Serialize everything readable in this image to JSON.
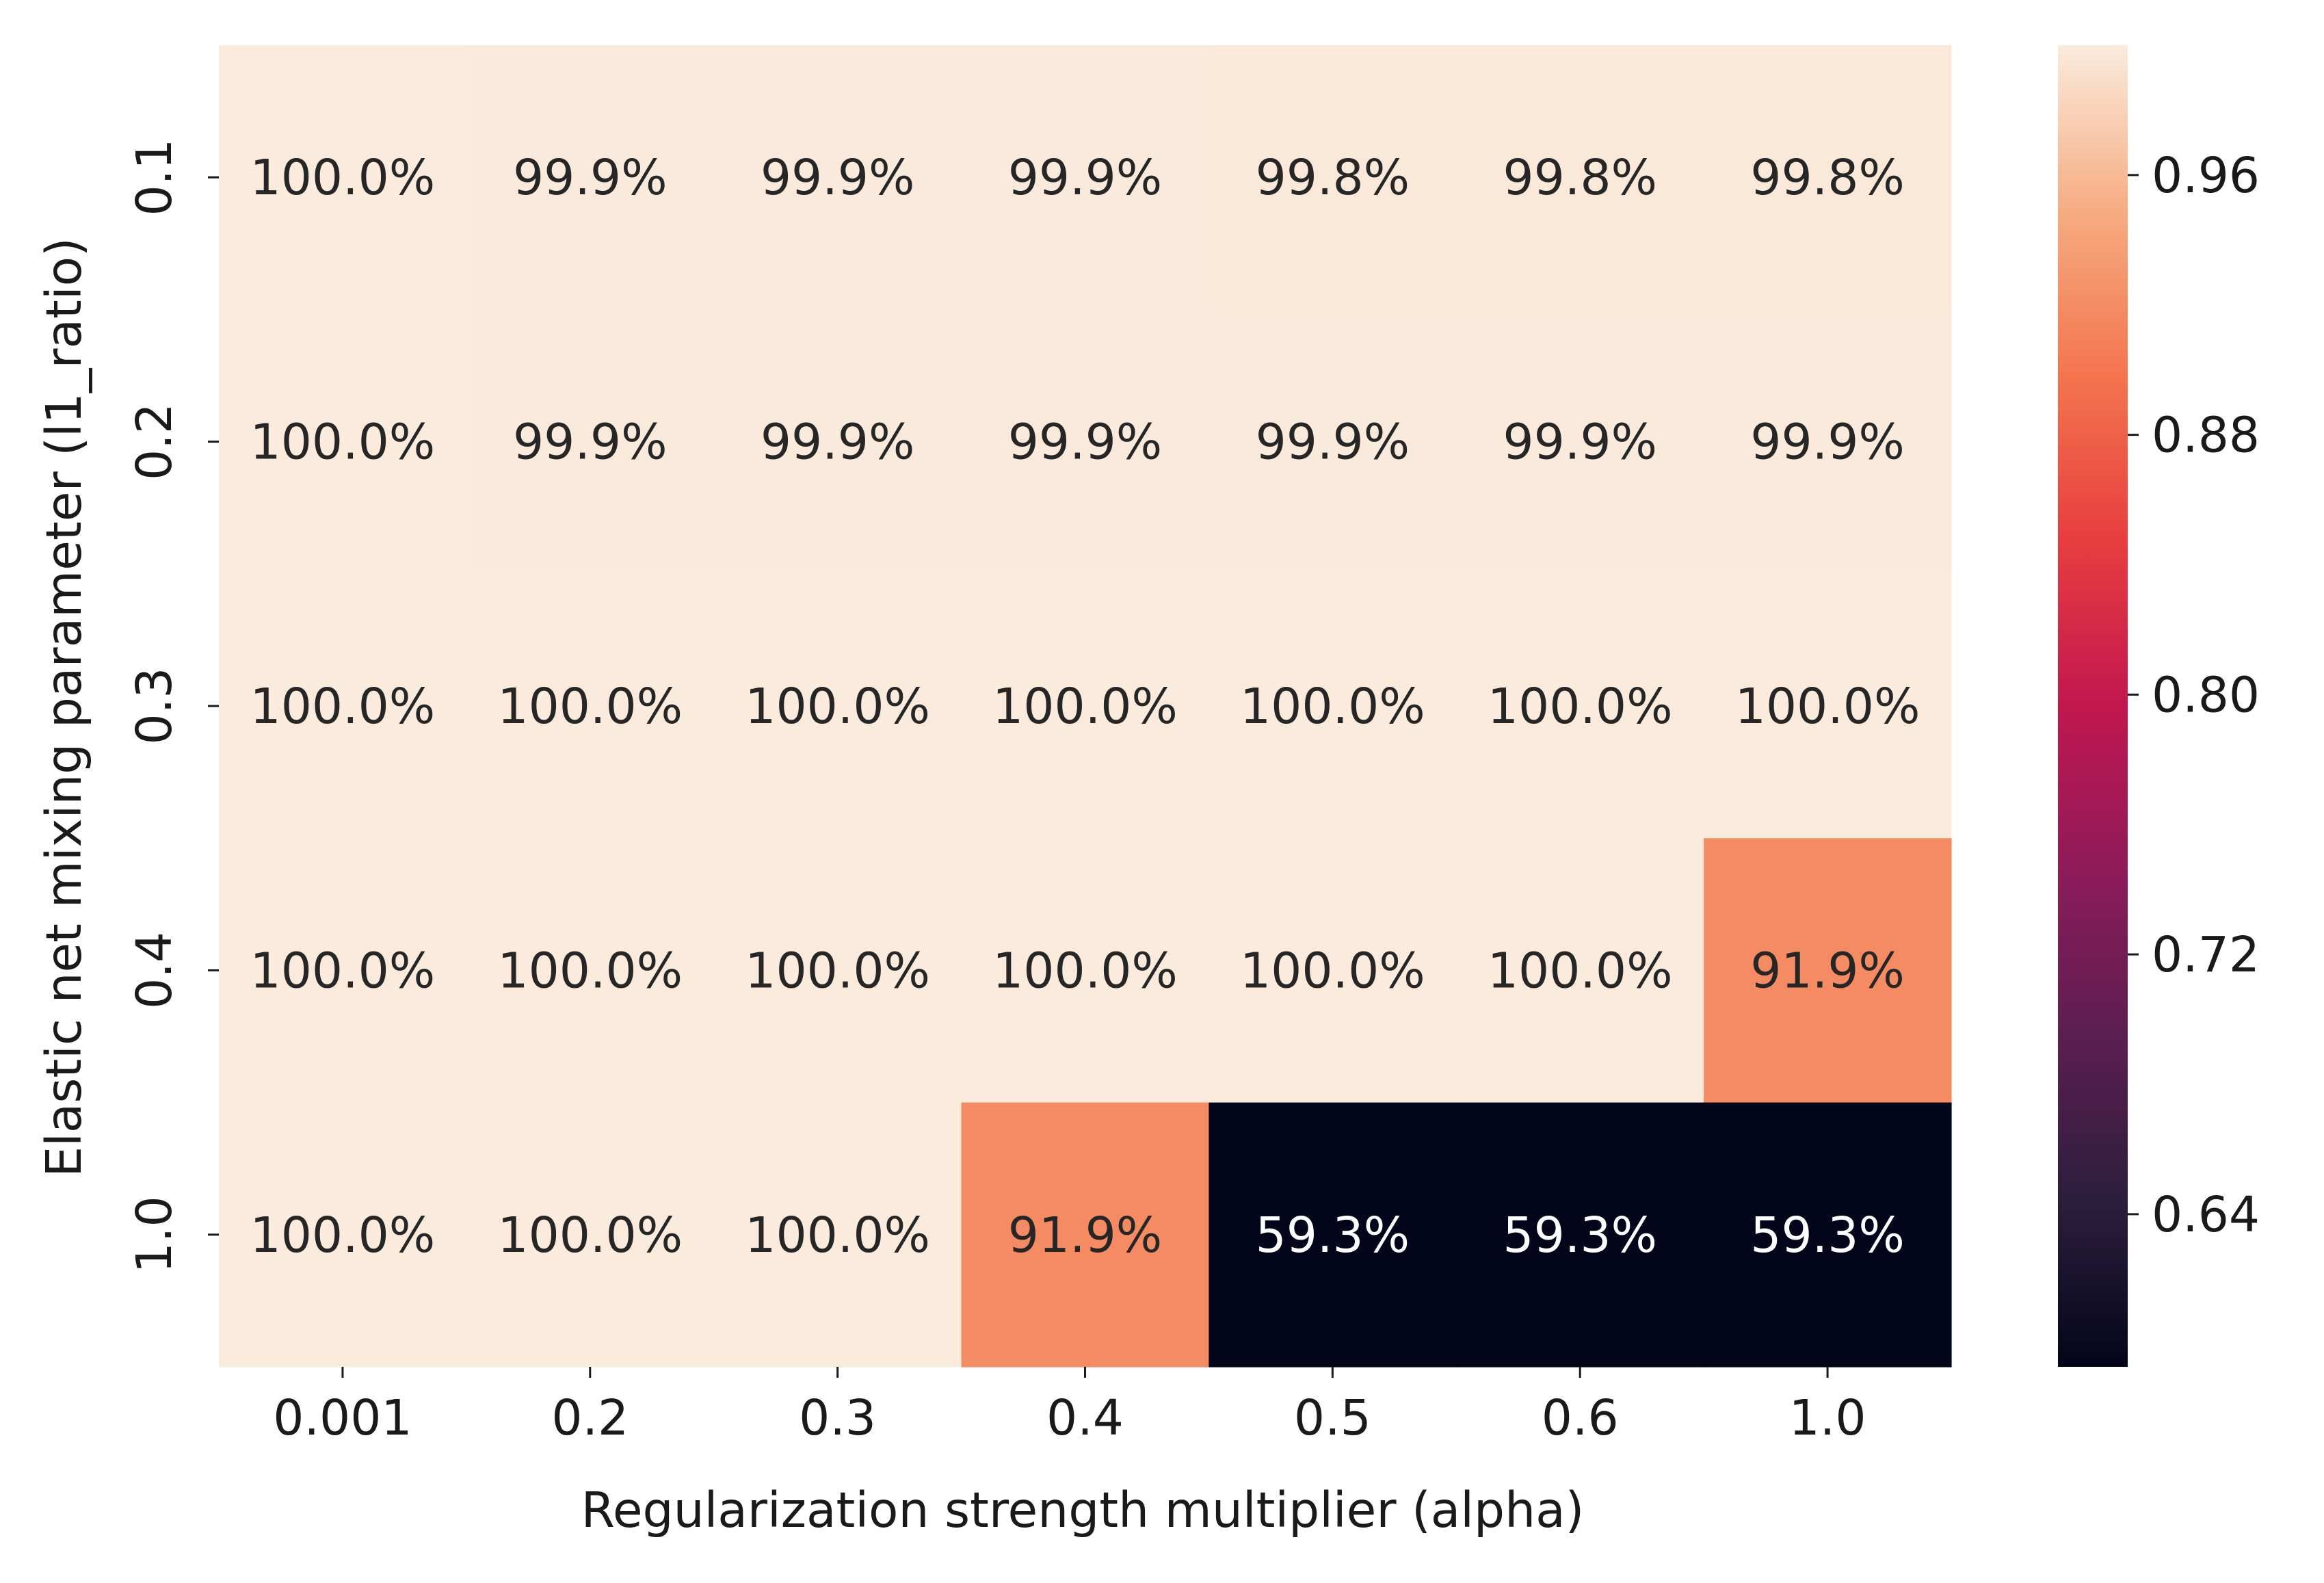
{
  "chart_data": {
    "type": "heatmap",
    "title": "",
    "xlabel": "Regularization strength multiplier (alpha)",
    "ylabel": "Elastic net mixing parameter (l1_ratio)",
    "x_categories": [
      "0.001",
      "0.2",
      "0.3",
      "0.4",
      "0.5",
      "0.6",
      "1.0"
    ],
    "y_categories": [
      "0.1",
      "0.2",
      "0.3",
      "0.4",
      "1.0"
    ],
    "values": [
      [
        1.0,
        0.999,
        0.999,
        0.999,
        0.998,
        0.998,
        0.998
      ],
      [
        1.0,
        0.999,
        0.999,
        0.999,
        0.999,
        0.999,
        0.999
      ],
      [
        1.0,
        1.0,
        1.0,
        1.0,
        1.0,
        1.0,
        1.0
      ],
      [
        1.0,
        1.0,
        1.0,
        1.0,
        1.0,
        1.0,
        0.919
      ],
      [
        1.0,
        1.0,
        1.0,
        0.919,
        0.593,
        0.593,
        0.593
      ]
    ],
    "annotations": [
      [
        "100.0%",
        "99.9%",
        "99.9%",
        "99.9%",
        "99.8%",
        "99.8%",
        "99.8%"
      ],
      [
        "100.0%",
        "99.9%",
        "99.9%",
        "99.9%",
        "99.9%",
        "99.9%",
        "99.9%"
      ],
      [
        "100.0%",
        "100.0%",
        "100.0%",
        "100.0%",
        "100.0%",
        "100.0%",
        "100.0%"
      ],
      [
        "100.0%",
        "100.0%",
        "100.0%",
        "100.0%",
        "100.0%",
        "100.0%",
        "91.9%"
      ],
      [
        "100.0%",
        "100.0%",
        "100.0%",
        "91.9%",
        "59.3%",
        "59.3%",
        "59.3%"
      ]
    ],
    "vmin": 0.593,
    "vmax": 1.0,
    "colormap": "rocket",
    "colorbar": {
      "ticks": [
        0.64,
        0.72,
        0.8,
        0.88,
        0.96
      ],
      "tick_labels": [
        "0.64",
        "0.72",
        "0.80",
        "0.88",
        "0.96"
      ],
      "placement": "right"
    },
    "colors": {
      "high": "#faebdd",
      "mid_high": "#f3986f",
      "low": "#03051a",
      "annotation_dark": "#262626",
      "annotation_light": "#ffffff"
    }
  }
}
